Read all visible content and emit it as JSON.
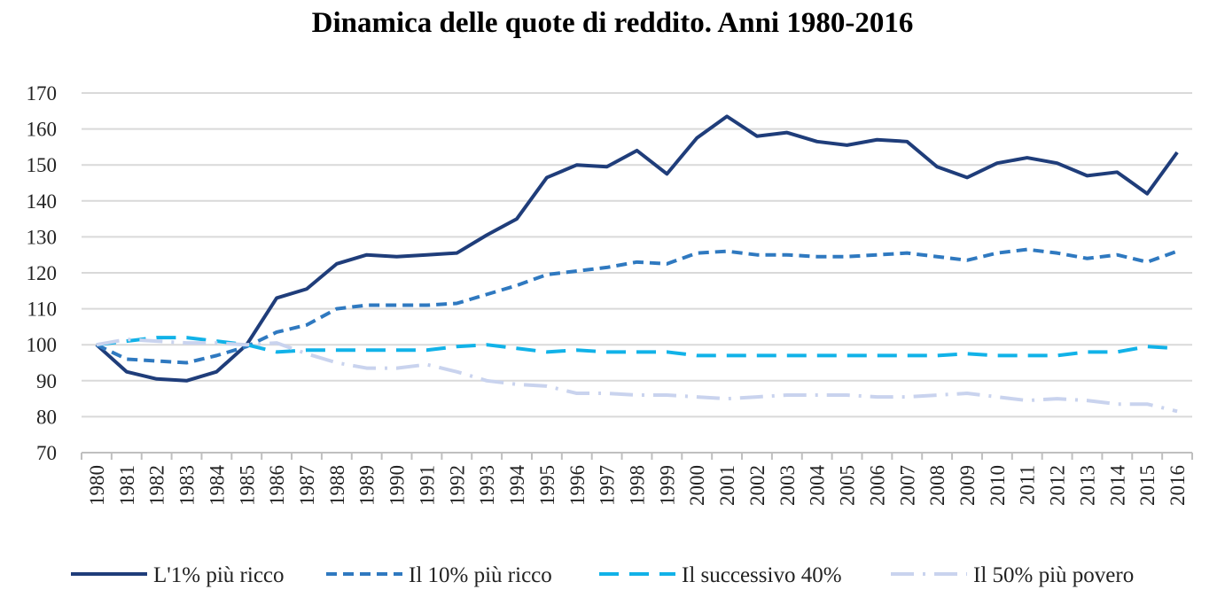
{
  "chart_data": {
    "type": "line",
    "title": "Dinamica delle quote di reddito. Anni 1980-2016",
    "xlabel": "",
    "ylabel": "",
    "ylim": [
      70,
      170
    ],
    "yticks": [
      70,
      80,
      90,
      100,
      110,
      120,
      130,
      140,
      150,
      160,
      170
    ],
    "grid": "horizontal",
    "legend_position": "bottom",
    "categories": [
      "1980",
      "1981",
      "1982",
      "1983",
      "1984",
      "1985",
      "1986",
      "1987",
      "1988",
      "1989",
      "1990",
      "1991",
      "1992",
      "1993",
      "1994",
      "1995",
      "1996",
      "1997",
      "1998",
      "1999",
      "2000",
      "2001",
      "2002",
      "2003",
      "2004",
      "2005",
      "2006",
      "2007",
      "2008",
      "2009",
      "2010",
      "2011",
      "2012",
      "2013",
      "2014",
      "2015",
      "2016"
    ],
    "series": [
      {
        "name": "L'1% più ricco",
        "color": "#1f3d7a",
        "dash": "solid",
        "values": [
          100,
          92.5,
          90.5,
          90,
          92.5,
          100,
          113,
          115.5,
          122.5,
          125,
          124.5,
          125,
          125.5,
          130.5,
          135,
          146.5,
          150,
          149.5,
          154,
          147.5,
          157.5,
          163.5,
          158,
          159,
          156.5,
          155.5,
          157,
          156.5,
          149.5,
          146.5,
          150.5,
          152,
          150.5,
          147,
          148,
          142,
          153.5
        ]
      },
      {
        "name": "Il 10% più ricco",
        "color": "#2f79c0",
        "dash": "short",
        "values": [
          100,
          96,
          95.5,
          95,
          97,
          99.5,
          103.5,
          105.5,
          110,
          111,
          111,
          111,
          111.5,
          114,
          116.5,
          119.5,
          120.5,
          121.5,
          123,
          122.5,
          125.5,
          126,
          125,
          125,
          124.5,
          124.5,
          125,
          125.5,
          124.5,
          123.5,
          125.5,
          126.5,
          125.5,
          124,
          125,
          123,
          126
        ]
      },
      {
        "name": "Il successivo 40%",
        "color": "#11b2e8",
        "dash": "long",
        "values": [
          100,
          101,
          102,
          102,
          101,
          100,
          98,
          98.5,
          98.5,
          98.5,
          98.5,
          98.5,
          99.5,
          100,
          99,
          98,
          98.5,
          98,
          98,
          98,
          97,
          97,
          97,
          97,
          97,
          97,
          97,
          97,
          97,
          97.5,
          97,
          97,
          97,
          98,
          98,
          99.5,
          99
        ]
      },
      {
        "name": "Il 50% più povero",
        "color": "#c9d3ee",
        "dash": "dashdot",
        "values": [
          100,
          101.5,
          101,
          100.5,
          100.5,
          100,
          100.5,
          97.5,
          95,
          93.5,
          93.5,
          94.5,
          92.5,
          90,
          89,
          88.5,
          86.5,
          86.5,
          86,
          86,
          85.5,
          85,
          85.5,
          86,
          86,
          86,
          85.5,
          85.5,
          86,
          86.5,
          85.5,
          84.5,
          85,
          84.5,
          83.5,
          83.5,
          81.5
        ]
      }
    ]
  }
}
